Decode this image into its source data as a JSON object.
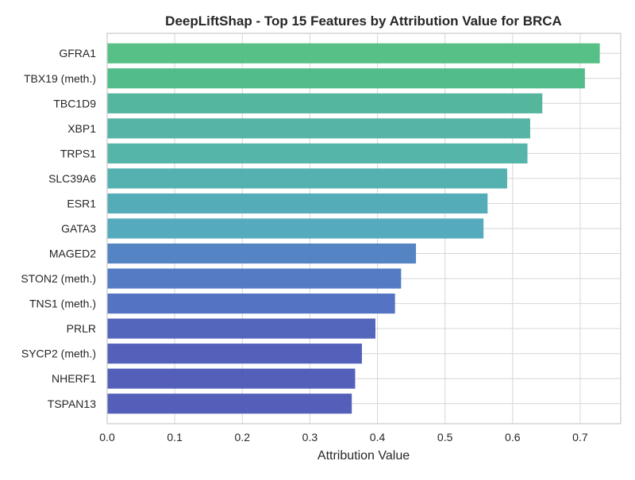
{
  "chart_data": {
    "type": "bar",
    "orientation": "horizontal",
    "title": "DeepLiftShap - Top 15 Features by Attribution Value for BRCA",
    "xlabel": "Attribution Value",
    "ylabel": "",
    "xlim": [
      0,
      0.76
    ],
    "xticks": [
      "0.0",
      "0.1",
      "0.2",
      "0.3",
      "0.4",
      "0.5",
      "0.6",
      "0.7"
    ],
    "grid": true,
    "legend": "none",
    "categories": [
      "GFRA1",
      "TBX19 (meth.)",
      "TBC1D9",
      "XBP1",
      "TRPS1",
      "SLC39A6",
      "ESR1",
      "GATA3",
      "MAGED2",
      "STON2 (meth.)",
      "TNS1 (meth.)",
      "PRLR",
      "SYCP2 (meth.)",
      "NHERF1",
      "TSPAN13"
    ],
    "values": [
      0.729,
      0.707,
      0.644,
      0.626,
      0.622,
      0.592,
      0.563,
      0.557,
      0.457,
      0.435,
      0.426,
      0.397,
      0.377,
      0.367,
      0.362
    ],
    "colors": [
      "#4ebd81",
      "#49b884",
      "#4cb299",
      "#4cb0a0",
      "#4cb1a3",
      "#4cadac",
      "#4ca8b5",
      "#4ca6b9",
      "#4b7dc1",
      "#4b74c1",
      "#4b6cc0",
      "#4b5db8",
      "#4b58b6",
      "#4b56b5",
      "#4b56b5"
    ]
  }
}
